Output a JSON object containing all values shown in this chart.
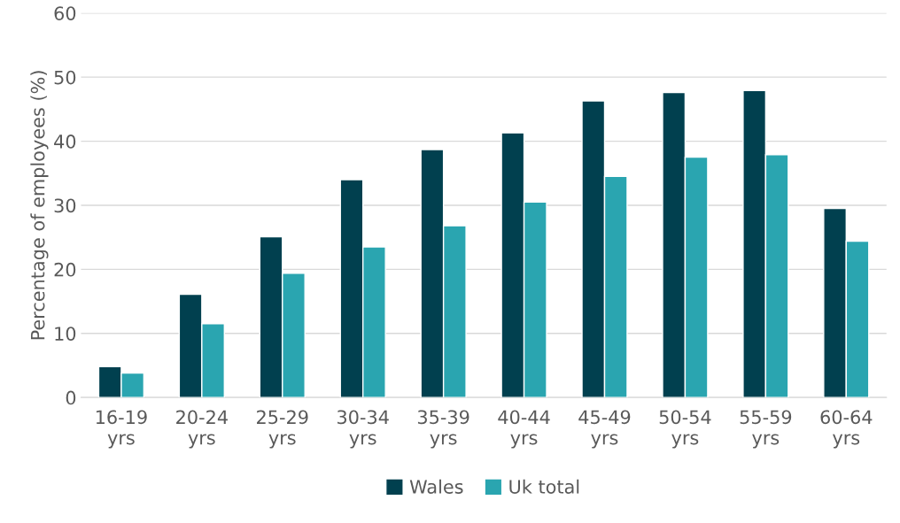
{
  "chart_data": {
    "type": "bar",
    "ylabel": "Percentage of employees (%)",
    "categories": [
      "16-19\nyrs",
      "20-24\nyrs",
      "25-29\nyrs",
      "30-34\nyrs",
      "35-39\nyrs",
      "40-44\nyrs",
      "45-49\nyrs",
      "50-54\nyrs",
      "55-59\nyrs",
      "60-64\nyrs"
    ],
    "series": [
      {
        "name": "Wales",
        "color": "#01404f",
        "values": [
          4.8,
          16.1,
          25.1,
          34.0,
          38.7,
          41.3,
          46.3,
          47.6,
          47.9,
          29.5
        ]
      },
      {
        "name": "Uk total",
        "color": "#2aa5b0",
        "values": [
          3.8,
          11.5,
          19.4,
          23.5,
          26.8,
          30.5,
          34.5,
          37.5,
          37.9,
          24.4
        ]
      }
    ],
    "ylim": [
      0,
      60
    ],
    "yticks": [
      0,
      10,
      20,
      30,
      40,
      50,
      60
    ],
    "grid": "y",
    "legend": "bottom"
  }
}
